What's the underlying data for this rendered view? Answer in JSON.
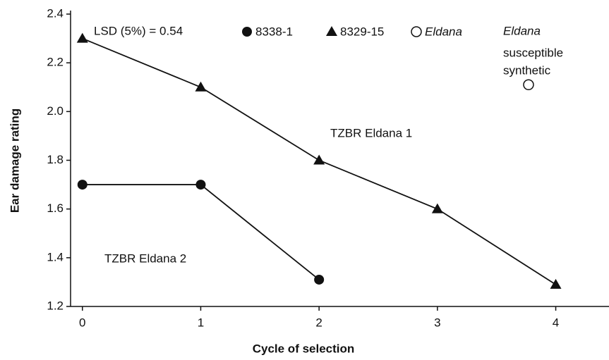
{
  "chart_data": {
    "type": "line",
    "xlabel": "Cycle of selection",
    "ylabel": "Ear damage rating",
    "legend_note": "LSD (5%) = 0.54",
    "xlim": [
      -0.1,
      4.45
    ],
    "ylim": [
      1.2,
      2.4
    ],
    "xticks": [
      0,
      1,
      2,
      3,
      4
    ],
    "yticks": [
      1.2,
      1.4,
      1.6,
      {
        "value": 1.8,
        "label": "1.8"
      },
      {
        "value": 2,
        "label": "2.0"
      },
      2.2,
      2.4
    ],
    "series": [
      {
        "name": "8338-1",
        "marker": "circle",
        "color": "#111111",
        "line": true,
        "x": [
          0,
          1,
          2
        ],
        "values": [
          1.7,
          1.7,
          1.31
        ]
      },
      {
        "name": "8329-15",
        "marker": "triangle",
        "color": "#111111",
        "line": true,
        "x": [
          0,
          1,
          2,
          3,
          4
        ],
        "values": [
          2.3,
          2.1,
          1.8,
          1.6,
          1.29
        ]
      },
      {
        "name": "Eldana",
        "marker": "open-circle",
        "color": "#111111",
        "line": false,
        "x": [
          3.77
        ],
        "values": [
          2.11
        ]
      }
    ],
    "annotations": [
      "TZBR Eldana 1",
      "TZBR Eldana 2",
      "Eldana",
      "susceptible",
      "synthetic"
    ]
  }
}
